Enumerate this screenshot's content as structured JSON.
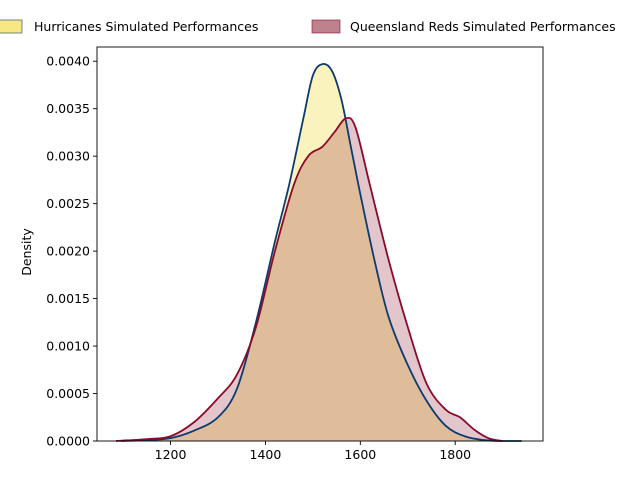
{
  "chart_data": {
    "type": "area",
    "title": "",
    "xlabel": "",
    "ylabel": "Density",
    "xlim": [
      1045,
      1985
    ],
    "ylim": [
      0,
      0.00415
    ],
    "grid": false,
    "legend_position": "top",
    "x_ticks": [
      1200,
      1400,
      1600,
      1800
    ],
    "y_ticks": [
      0.0,
      0.0005,
      0.001,
      0.0015,
      0.002,
      0.0025,
      0.003,
      0.0035,
      0.004
    ],
    "x_tick_labels": [
      "1200",
      "1400",
      "1600",
      "1800"
    ],
    "y_tick_labels": [
      "0.0000",
      "0.0005",
      "0.0010",
      "0.0015",
      "0.0020",
      "0.0025",
      "0.0030",
      "0.0035",
      "0.0040"
    ],
    "series": [
      {
        "name": "Hurricanes Simulated Performances",
        "fill": "#f5e05a",
        "fill_opacity": 0.4,
        "line": "#0d3b6e",
        "x": [
          1095,
          1150,
          1200,
          1250,
          1300,
          1340,
          1380,
          1420,
          1450,
          1480,
          1500,
          1520,
          1540,
          1560,
          1580,
          1600,
          1630,
          1660,
          1700,
          1740,
          1780,
          1820,
          1860,
          1900,
          1940
        ],
        "y": [
          0.0,
          1e-05,
          3e-05,
          0.00011,
          0.00025,
          0.00055,
          0.00125,
          0.0021,
          0.0027,
          0.0034,
          0.00385,
          0.00397,
          0.0039,
          0.0036,
          0.0031,
          0.0026,
          0.0019,
          0.0013,
          0.0008,
          0.00042,
          0.00016,
          5e-05,
          1e-05,
          0.0,
          0.0
        ]
      },
      {
        "name": "Queensland Reds Simulated Performances",
        "fill": "#8b1a32",
        "fill_opacity": 0.25,
        "line": "#8b0a2a",
        "x": [
          1085,
          1150,
          1200,
          1250,
          1300,
          1340,
          1380,
          1420,
          1460,
          1490,
          1520,
          1545,
          1570,
          1590,
          1620,
          1660,
          1700,
          1740,
          1780,
          1810,
          1840,
          1870,
          1900
        ],
        "y": [
          0.0,
          2e-05,
          5e-05,
          0.0002,
          0.00045,
          0.0007,
          0.0012,
          0.002,
          0.0027,
          0.003,
          0.0031,
          0.00325,
          0.0034,
          0.0033,
          0.0027,
          0.0019,
          0.0012,
          0.0006,
          0.00033,
          0.00025,
          0.00012,
          3e-05,
          0.0
        ]
      }
    ]
  }
}
